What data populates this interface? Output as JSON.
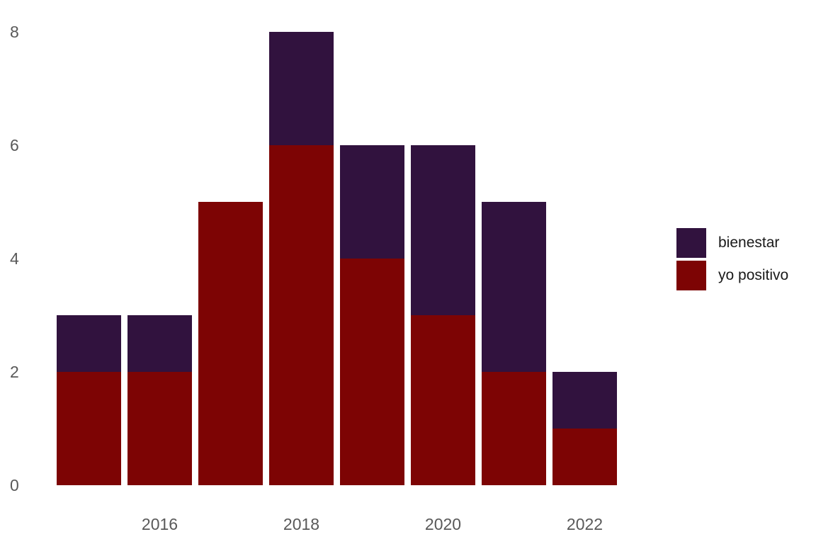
{
  "chart_data": {
    "type": "bar",
    "stacked": true,
    "title": "",
    "xlabel": "",
    "ylabel": "",
    "categories": [
      "2015",
      "2016",
      "2017",
      "2018",
      "2019",
      "2020",
      "2021",
      "2022"
    ],
    "series": [
      {
        "name": "bienestar",
        "color": "#31123E",
        "values": [
          1,
          1,
          0,
          2,
          2,
          3,
          3,
          1
        ]
      },
      {
        "name": "yo positivo",
        "color": "#7D0404",
        "values": [
          2,
          2,
          5,
          6,
          4,
          3,
          2,
          1
        ]
      }
    ],
    "stack_bottom_to_top": [
      "yo positivo",
      "bienestar"
    ],
    "totals": [
      3,
      3,
      5,
      8,
      6,
      6,
      5,
      2
    ],
    "y_ticks": [
      0,
      2,
      4,
      6,
      8
    ],
    "ylim": [
      0,
      8
    ],
    "x_tick_labels": [
      "2016",
      "2018",
      "2020",
      "2022"
    ],
    "grid": false,
    "legend_position": "right",
    "axis_text_color": "#595959",
    "legend_text_color": "#1a1a1a",
    "background_color": "#ffffff"
  }
}
